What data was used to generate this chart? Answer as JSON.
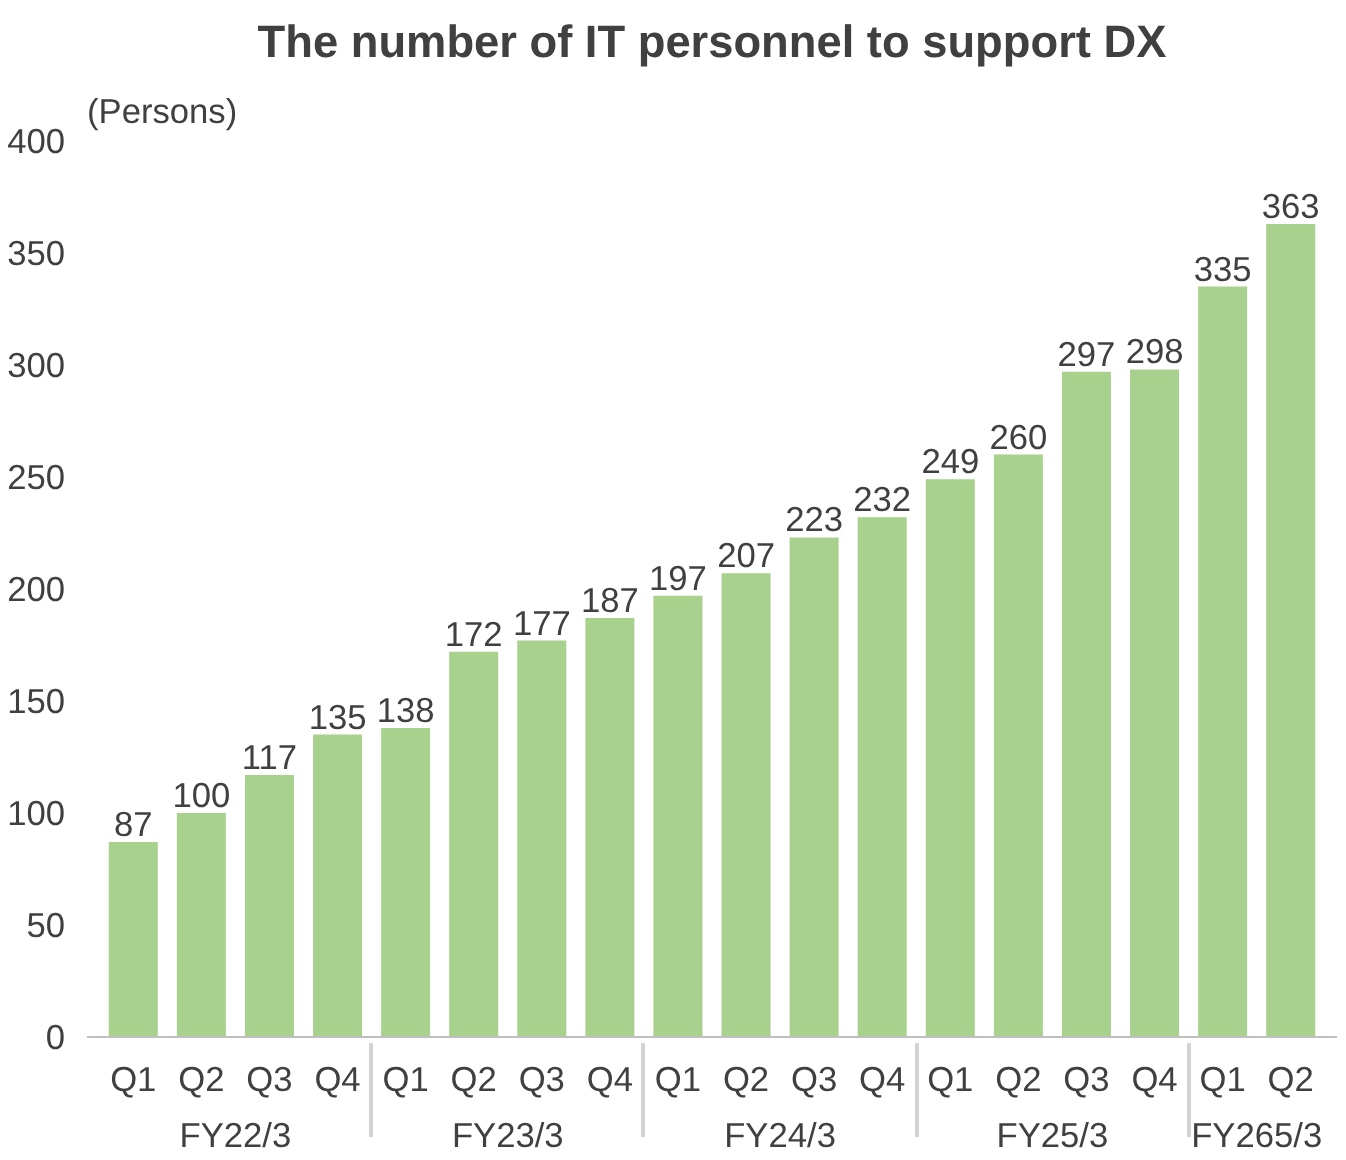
{
  "chart_data": {
    "type": "bar",
    "title": "The number of IT personnel to support DX",
    "ylabel": "(Persons)",
    "categories": [
      "Q1",
      "Q2",
      "Q3",
      "Q4",
      "Q1",
      "Q2",
      "Q3",
      "Q4",
      "Q1",
      "Q2",
      "Q3",
      "Q4",
      "Q1",
      "Q2",
      "Q3",
      "Q4",
      "Q1",
      "Q2"
    ],
    "values": [
      87,
      100,
      117,
      135,
      138,
      172,
      177,
      187,
      197,
      207,
      223,
      232,
      249,
      260,
      297,
      298,
      335,
      363
    ],
    "color": "#a9d18e",
    "ylim": [
      0,
      400
    ],
    "yticks": [
      0,
      50,
      100,
      150,
      200,
      250,
      300,
      350,
      400
    ],
    "data_labels": true,
    "annotations": [
      "FY22/3",
      "FY23/3",
      "FY24/3",
      "FY25/3",
      "FY265/3"
    ]
  }
}
